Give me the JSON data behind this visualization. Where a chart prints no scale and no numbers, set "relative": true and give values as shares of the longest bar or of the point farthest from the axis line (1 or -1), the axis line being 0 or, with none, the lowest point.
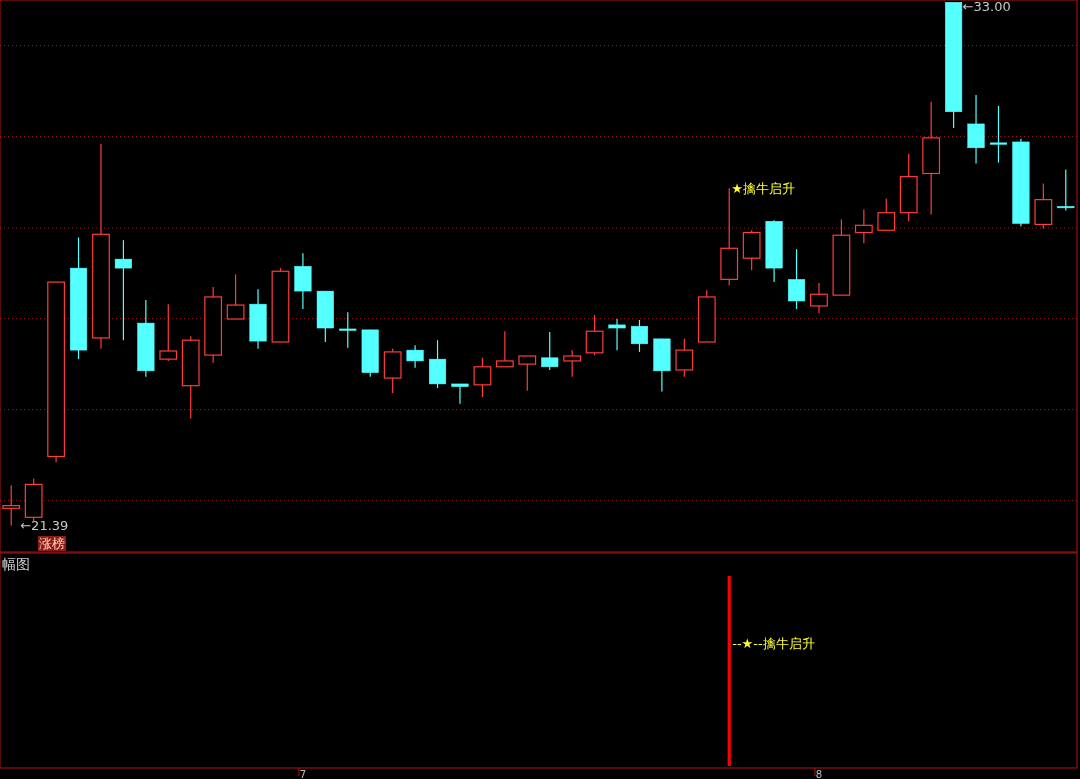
{
  "chart_data": [
    {
      "type": "candlestick",
      "categories": [
        null,
        null,
        null,
        null,
        null,
        null,
        null,
        null,
        null,
        null,
        null,
        null,
        null,
        null,
        null,
        null,
        null,
        null,
        null,
        null,
        null,
        null,
        null,
        null,
        null,
        null,
        null,
        null,
        null,
        null,
        null,
        null,
        null,
        null,
        null,
        null,
        null,
        null,
        null,
        null,
        null,
        null,
        null,
        null,
        null,
        null,
        null,
        null
      ],
      "ohlc": [
        [
          21.77,
          22.28,
          21.39,
          21.83
        ],
        [
          21.57,
          22.43,
          21.48,
          22.3
        ],
        [
          22.92,
          26.79,
          22.79,
          26.79
        ],
        [
          27.1,
          27.78,
          25.08,
          25.28
        ],
        [
          25.55,
          29.86,
          25.31,
          27.85
        ],
        [
          27.3,
          27.72,
          25.5,
          27.1
        ],
        [
          25.88,
          26.39,
          24.69,
          24.82
        ],
        [
          25.08,
          26.3,
          25.04,
          25.26
        ],
        [
          24.49,
          25.59,
          23.76,
          25.5
        ],
        [
          25.17,
          26.68,
          25.0,
          26.46
        ],
        [
          25.97,
          26.96,
          25.97,
          26.28
        ],
        [
          26.3,
          26.63,
          25.31,
          25.48
        ],
        [
          25.46,
          27.1,
          25.46,
          27.03
        ],
        [
          27.14,
          27.43,
          26.19,
          26.59
        ],
        [
          26.59,
          26.59,
          25.46,
          25.77
        ],
        [
          25.75,
          26.12,
          25.33,
          25.75
        ],
        [
          25.73,
          25.73,
          24.69,
          24.78
        ],
        [
          24.66,
          25.31,
          24.33,
          25.24
        ],
        [
          25.28,
          25.39,
          24.89,
          25.04
        ],
        [
          25.08,
          25.5,
          24.44,
          24.53
        ],
        [
          24.53,
          24.53,
          24.09,
          24.47
        ],
        [
          24.51,
          25.11,
          24.24,
          24.91
        ],
        [
          24.91,
          25.7,
          24.91,
          25.04
        ],
        [
          24.97,
          25.15,
          24.38,
          25.15
        ],
        [
          25.11,
          25.68,
          24.84,
          24.91
        ],
        [
          25.04,
          25.28,
          24.69,
          25.15
        ],
        [
          25.22,
          26.06,
          25.17,
          25.7
        ],
        [
          25.84,
          25.97,
          25.28,
          25.77
        ],
        [
          25.81,
          25.95,
          25.24,
          25.42
        ],
        [
          25.53,
          25.53,
          24.36,
          24.82
        ],
        [
          24.84,
          25.53,
          24.69,
          25.28
        ],
        [
          25.46,
          26.61,
          25.46,
          26.46
        ],
        [
          26.85,
          28.87,
          26.72,
          27.54
        ],
        [
          27.32,
          27.94,
          27.05,
          27.89
        ],
        [
          28.14,
          28.16,
          26.79,
          27.1
        ],
        [
          26.85,
          27.52,
          26.19,
          26.37
        ],
        [
          26.26,
          26.77,
          26.1,
          26.52
        ],
        [
          26.5,
          28.18,
          26.5,
          27.83
        ],
        [
          27.89,
          28.4,
          27.65,
          28.05
        ],
        [
          27.94,
          28.64,
          27.94,
          28.33
        ],
        [
          28.33,
          29.64,
          28.14,
          29.13
        ],
        [
          29.2,
          30.79,
          28.29,
          29.99
        ],
        [
          33.0,
          33.0,
          30.21,
          30.57
        ],
        [
          30.3,
          30.94,
          29.42,
          29.77
        ],
        [
          29.88,
          30.7,
          29.44,
          29.88
        ],
        [
          29.9,
          29.97,
          28.03,
          28.09
        ],
        [
          28.07,
          28.98,
          27.98,
          28.62
        ],
        [
          28.47,
          29.29,
          28.38,
          28.47
        ]
      ],
      "colors": [
        "#ff3c3c",
        "#ff3c3c",
        "#ff3c3c",
        "#54ffff",
        "#ff3c3c",
        "#54ffff",
        "#54ffff",
        "#ff3c3c",
        "#ff3c3c",
        "#ff3c3c",
        "#ff3c3c",
        "#54ffff",
        "#ff3c3c",
        "#54ffff",
        "#54ffff",
        "#54ffff",
        "#54ffff",
        "#ff3c3c",
        "#54ffff",
        "#54ffff",
        "#54ffff",
        "#ff3c3c",
        "#ff3c3c",
        "#ff3c3c",
        "#54ffff",
        "#ff3c3c",
        "#ff3c3c",
        "#54ffff",
        "#54ffff",
        "#54ffff",
        "#ff3c3c",
        "#ff3c3c",
        "#ff3c3c",
        "#ff3c3c",
        "#54ffff",
        "#54ffff",
        "#ff3c3c",
        "#ff3c3c",
        "#ff3c3c",
        "#ff3c3c",
        "#ff3c3c",
        "#ff3c3c",
        "#54ffff",
        "#54ffff",
        "#54ffff",
        "#54ffff",
        "#ff3c3c",
        "#54ffff"
      ],
      "ylim": [
        20.8,
        33.05
      ],
      "yticks": [
        {
          "value": 21.94,
          "label": null
        },
        {
          "value": 23.96,
          "label": null
        },
        {
          "value": 25.98,
          "label": null
        },
        {
          "value": 27.99,
          "label": null
        },
        {
          "value": 30.02,
          "label": null
        },
        {
          "value": 32.04,
          "label": null
        }
      ],
      "grid": "y",
      "tick_labels": false,
      "annotations": [
        "←33.00",
        "←21.39",
        "★擒牛启升",
        "涨榜"
      ]
    },
    {
      "type": "bar",
      "title": "幅图",
      "categories": [
        null,
        null,
        null,
        null,
        null,
        null,
        null,
        null,
        null,
        null,
        null,
        null,
        null,
        "7",
        null,
        null,
        null,
        null,
        null,
        null,
        null,
        null,
        null,
        null,
        null,
        null,
        null,
        null,
        null,
        null,
        null,
        null,
        null,
        null,
        null,
        null,
        "8",
        null,
        null,
        null,
        null,
        null,
        null,
        null,
        null,
        null,
        null,
        null
      ],
      "values": [
        null,
        null,
        null,
        null,
        null,
        null,
        null,
        null,
        null,
        null,
        null,
        null,
        null,
        null,
        null,
        null,
        null,
        null,
        null,
        null,
        null,
        null,
        null,
        null,
        null,
        null,
        null,
        null,
        null,
        null,
        null,
        null,
        1,
        null,
        null,
        null,
        null,
        null,
        null,
        null,
        null,
        null,
        null,
        null,
        null,
        null,
        null,
        null
      ],
      "color": "#ff0000",
      "relative": true,
      "tick_labels": "x",
      "annotations": [
        "--★--擒牛启升"
      ]
    }
  ]
}
